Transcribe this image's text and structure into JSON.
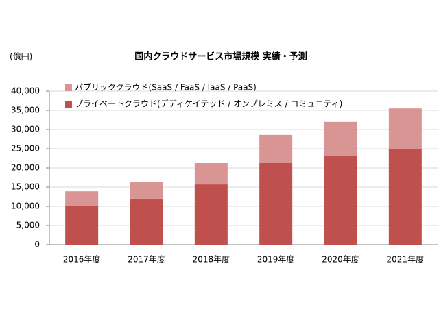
{
  "chart_data": {
    "type": "stacked_bar",
    "title": "国内クラウドサービス市場規模  実績・予測",
    "y_label": "(億円)",
    "categories": [
      "2016年度",
      "2017年度",
      "2018年度",
      "2019年度",
      "2020年度",
      "2021年度"
    ],
    "series": [
      {
        "name": "パブリッククラウド(SaaS / FaaS / IaaS / PaaS)",
        "color": "#d99594",
        "values": [
          3800,
          4250,
          5550,
          7350,
          8800,
          10500
        ]
      },
      {
        "name": "プライベートクラウド(デディケイテッド  / オンプレミス / コミュニティ)",
        "color": "#c0504d",
        "values": [
          10100,
          12000,
          15700,
          21250,
          23200,
          25000
        ]
      }
    ],
    "ylim": [
      0,
      40000
    ],
    "yticks": [
      0,
      {
        "value": 5000,
        "label": "5,000"
      },
      {
        "value": 10000,
        "label": "10,000"
      },
      {
        "value": 15000,
        "label": "15,000"
      },
      {
        "value": 20000,
        "label": "20,000"
      },
      {
        "value": 25000,
        "label": "25,000"
      },
      {
        "value": 30000,
        "label": "30,000"
      },
      {
        "value": 35000,
        "label": "35,000"
      },
      {
        "value": 40000,
        "label": "40,000"
      }
    ],
    "grid": true
  }
}
